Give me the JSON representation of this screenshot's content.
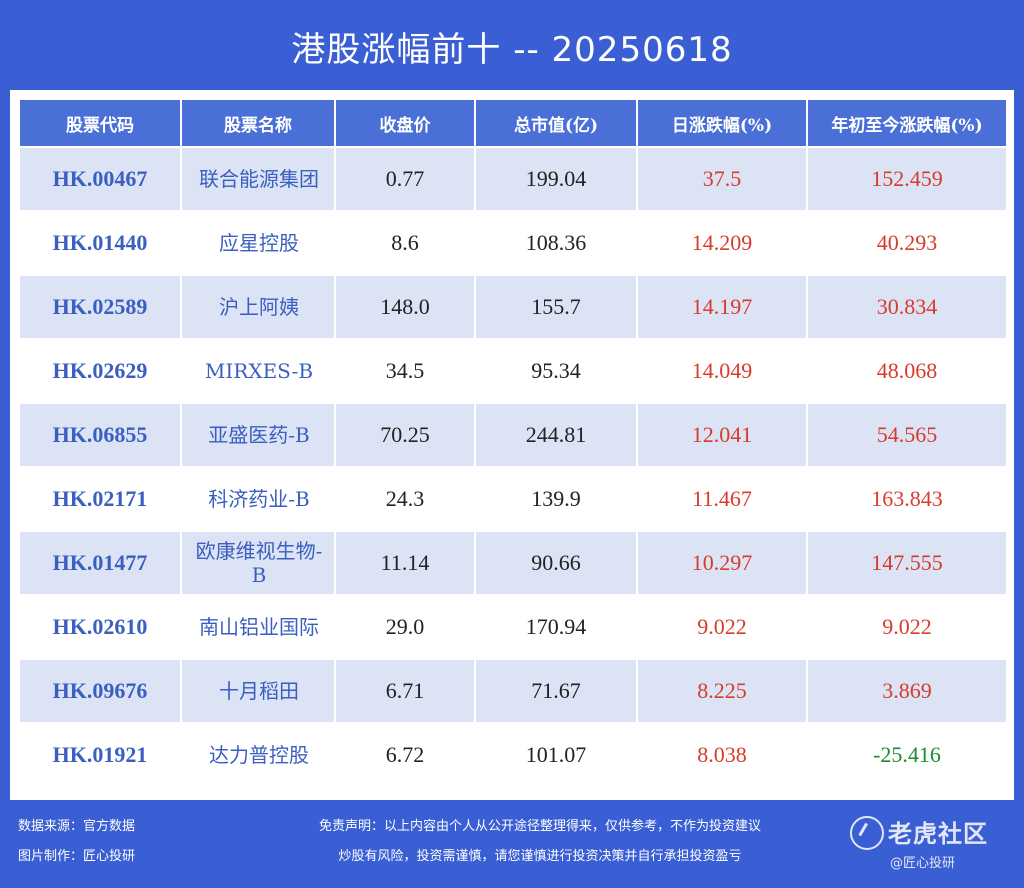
{
  "title": "港股涨幅前十 -- 20250618",
  "table": {
    "headers": [
      "股票代码",
      "股票名称",
      "收盘价",
      "总市值(亿)",
      "日涨跌幅(%)",
      "年初至今涨跌幅(%)"
    ],
    "rows": [
      {
        "code": "HK.00467",
        "name": "联合能源集团",
        "close": "0.77",
        "mcap": "199.04",
        "day": "37.5",
        "ytd": "152.459"
      },
      {
        "code": "HK.01440",
        "name": "应星控股",
        "close": "8.6",
        "mcap": "108.36",
        "day": "14.209",
        "ytd": "40.293"
      },
      {
        "code": "HK.02589",
        "name": "沪上阿姨",
        "close": "148.0",
        "mcap": "155.7",
        "day": "14.197",
        "ytd": "30.834"
      },
      {
        "code": "HK.02629",
        "name": "MIRXES-B",
        "close": "34.5",
        "mcap": "95.34",
        "day": "14.049",
        "ytd": "48.068"
      },
      {
        "code": "HK.06855",
        "name": "亚盛医药-B",
        "close": "70.25",
        "mcap": "244.81",
        "day": "12.041",
        "ytd": "54.565"
      },
      {
        "code": "HK.02171",
        "name": "科济药业-B",
        "close": "24.3",
        "mcap": "139.9",
        "day": "11.467",
        "ytd": "163.843"
      },
      {
        "code": "HK.01477",
        "name": "欧康维视生物-B",
        "close": "11.14",
        "mcap": "90.66",
        "day": "10.297",
        "ytd": "147.555"
      },
      {
        "code": "HK.02610",
        "name": "南山铝业国际",
        "close": "29.0",
        "mcap": "170.94",
        "day": "9.022",
        "ytd": "9.022"
      },
      {
        "code": "HK.09676",
        "name": "十月稻田",
        "close": "6.71",
        "mcap": "71.67",
        "day": "8.225",
        "ytd": "3.869"
      },
      {
        "code": "HK.01921",
        "name": "达力普控股",
        "close": "6.72",
        "mcap": "101.07",
        "day": "8.038",
        "ytd": "-25.416"
      }
    ]
  },
  "footer": {
    "source": "数据来源：官方数据",
    "maker": "图片制作：匠心投研",
    "disclaimer1": "免责声明：以上内容由个人从公开途径整理得来，仅供参考，不作为投资建议",
    "disclaimer2": "炒股有风险，投资需谨慎，请您谨慎进行投资决策并自行承担投资盈亏"
  },
  "brand": {
    "name": "老虎社区",
    "sub": "@匠心投研"
  },
  "colors": {
    "background": "#3a5fd4",
    "header": "#4a6fd6",
    "stripe": "#dbe3f5",
    "positive": "#d83b2c",
    "negative": "#1a8c2c"
  }
}
